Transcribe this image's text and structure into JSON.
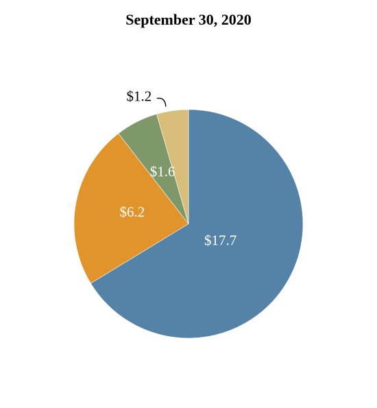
{
  "chart_data": {
    "type": "pie",
    "title": "September 30, 2020",
    "slices": [
      {
        "label": "$17.7",
        "value": 17.7,
        "color": "#5582a7",
        "label_color": "#ffffff"
      },
      {
        "label": "$6.2",
        "value": 6.2,
        "color": "#e0942b",
        "label_color": "#ffffff"
      },
      {
        "label": "$1.6",
        "value": 1.6,
        "color": "#7f986a",
        "label_color": "#ffffff"
      },
      {
        "label": "$1.2",
        "value": 1.2,
        "color": "#d9bd7b",
        "label_color": "#000000"
      }
    ],
    "start_angle": "12 o'clock",
    "direction": "clockwise",
    "legend": "none"
  }
}
